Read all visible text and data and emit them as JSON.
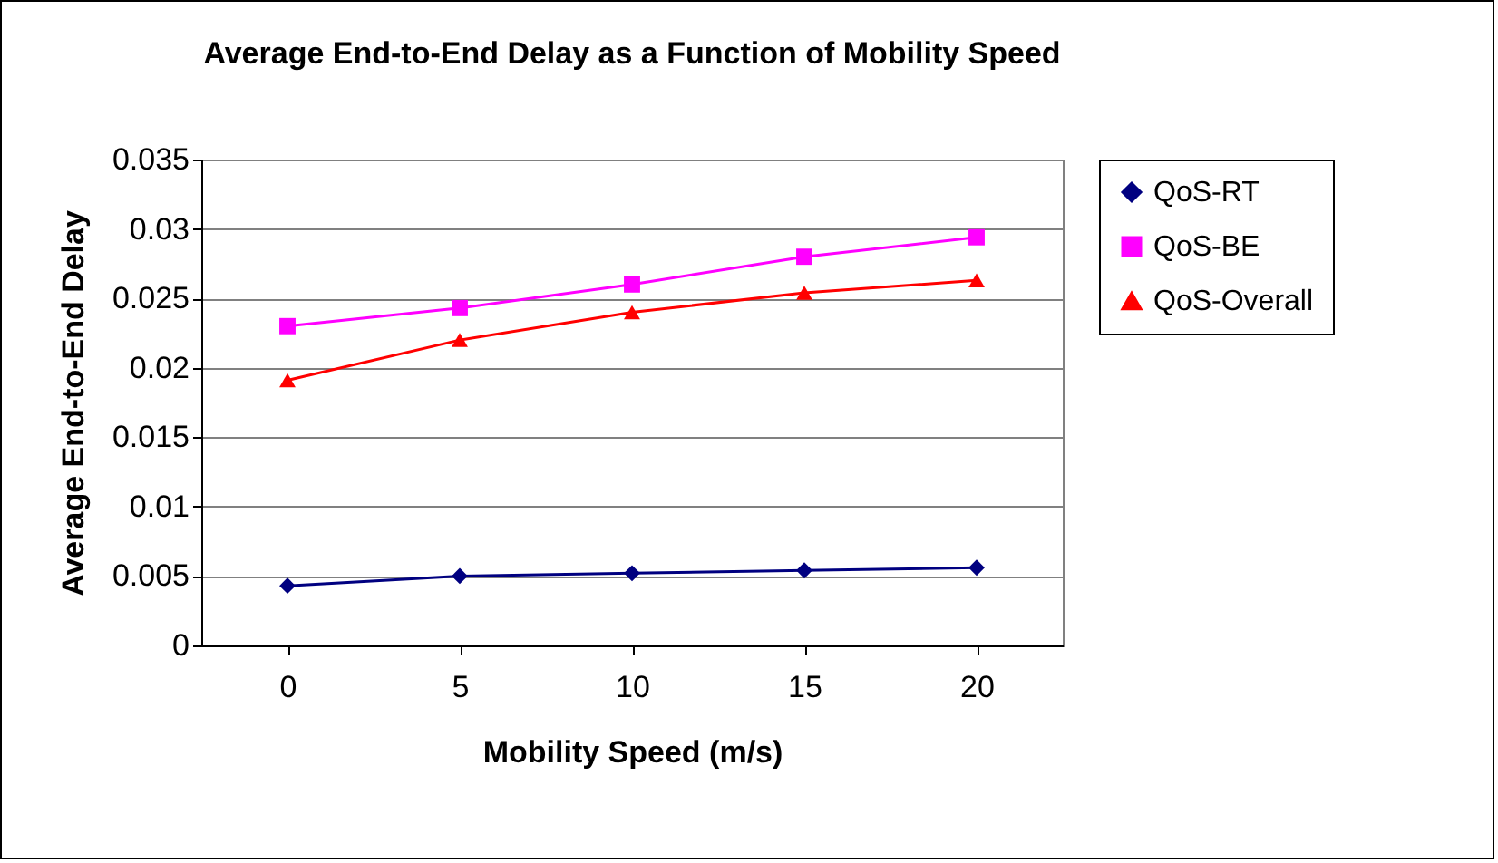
{
  "chart_data": {
    "type": "line",
    "title": "Average End-to-End Delay as a Function of Mobility Speed",
    "xlabel": "Mobility Speed (m/s)",
    "ylabel": "Average End-to-End Delay",
    "categories": [
      "0",
      "5",
      "10",
      "15",
      "20"
    ],
    "series": [
      {
        "name": "QoS-RT",
        "color": "#000080",
        "marker": "diamond",
        "values": [
          0.0043,
          0.005,
          0.0052,
          0.0054,
          0.0056
        ]
      },
      {
        "name": "QoS-BE",
        "color": "#ff00ff",
        "marker": "square",
        "values": [
          0.023,
          0.0243,
          0.026,
          0.028,
          0.0294
        ]
      },
      {
        "name": "QoS-Overall",
        "color": "#ff0000",
        "marker": "triangle",
        "values": [
          0.0191,
          0.022,
          0.024,
          0.0254,
          0.0263
        ]
      }
    ],
    "ylim": [
      0,
      0.035
    ],
    "yticks": [
      0,
      0.005,
      0.01,
      0.015,
      0.02,
      0.025,
      0.03,
      0.035
    ],
    "grid": "y",
    "legend": "right"
  }
}
